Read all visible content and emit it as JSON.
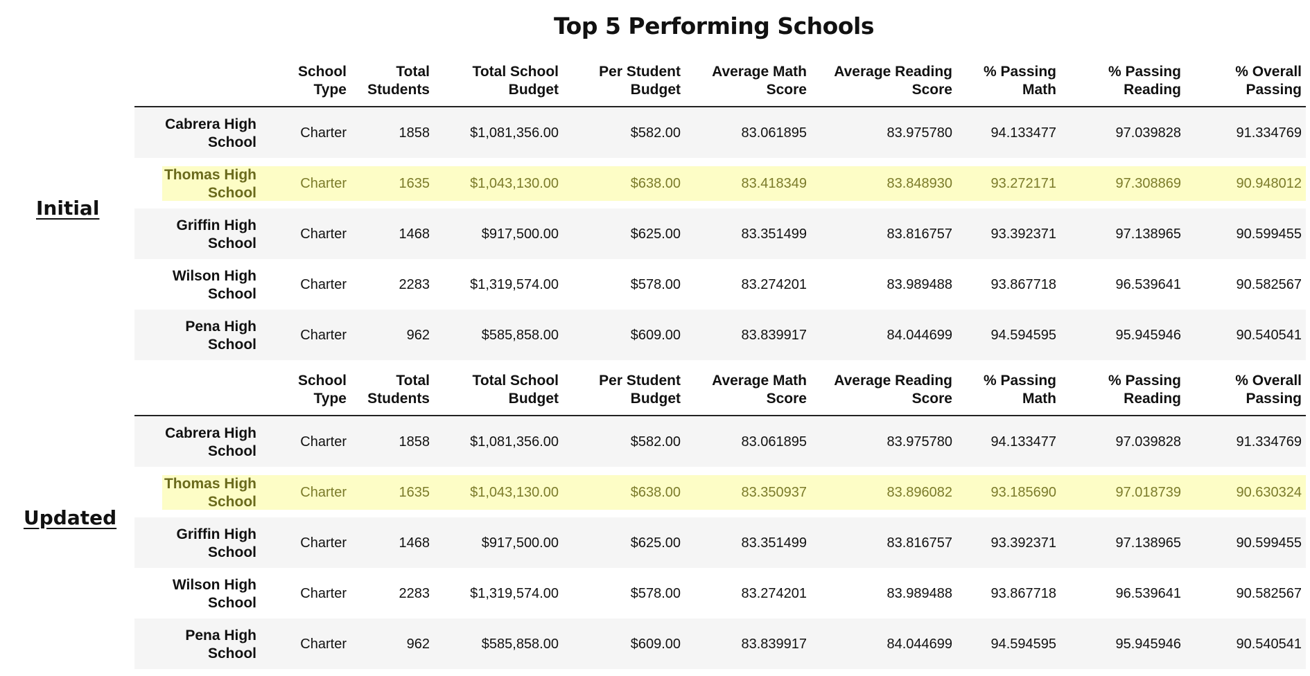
{
  "title": "Top 5 Performing Schools",
  "headers": [
    "",
    "School Type",
    "Total Students",
    "Total School Budget",
    "Per Student Budget",
    "Average Math Score",
    "Average Reading Score",
    "% Passing Math",
    "% Passing Reading",
    "% Overall Passing"
  ],
  "highlight_color": "#fdfdc6",
  "tables": [
    {
      "label": "Initial",
      "highlight_row": 1,
      "rows": [
        [
          "Cabrera High School",
          "Charter",
          "1858",
          "$1,081,356.00",
          "$582.00",
          "83.061895",
          "83.975780",
          "94.133477",
          "97.039828",
          "91.334769"
        ],
        [
          "Thomas High School",
          "Charter",
          "1635",
          "$1,043,130.00",
          "$638.00",
          "83.418349",
          "83.848930",
          "93.272171",
          "97.308869",
          "90.948012"
        ],
        [
          "Griffin High School",
          "Charter",
          "1468",
          "$917,500.00",
          "$625.00",
          "83.351499",
          "83.816757",
          "93.392371",
          "97.138965",
          "90.599455"
        ],
        [
          "Wilson High School",
          "Charter",
          "2283",
          "$1,319,574.00",
          "$578.00",
          "83.274201",
          "83.989488",
          "93.867718",
          "96.539641",
          "90.582567"
        ],
        [
          "Pena High School",
          "Charter",
          "962",
          "$585,858.00",
          "$609.00",
          "83.839917",
          "84.044699",
          "94.594595",
          "95.945946",
          "90.540541"
        ]
      ]
    },
    {
      "label": "Updated",
      "highlight_row": 1,
      "rows": [
        [
          "Cabrera High School",
          "Charter",
          "1858",
          "$1,081,356.00",
          "$582.00",
          "83.061895",
          "83.975780",
          "94.133477",
          "97.039828",
          "91.334769"
        ],
        [
          "Thomas High School",
          "Charter",
          "1635",
          "$1,043,130.00",
          "$638.00",
          "83.350937",
          "83.896082",
          "93.185690",
          "97.018739",
          "90.630324"
        ],
        [
          "Griffin High School",
          "Charter",
          "1468",
          "$917,500.00",
          "$625.00",
          "83.351499",
          "83.816757",
          "93.392371",
          "97.138965",
          "90.599455"
        ],
        [
          "Wilson High School",
          "Charter",
          "2283",
          "$1,319,574.00",
          "$578.00",
          "83.274201",
          "83.989488",
          "93.867718",
          "96.539641",
          "90.582567"
        ],
        [
          "Pena High School",
          "Charter",
          "962",
          "$585,858.00",
          "$609.00",
          "83.839917",
          "84.044699",
          "94.594595",
          "95.945946",
          "90.540541"
        ]
      ]
    }
  ]
}
